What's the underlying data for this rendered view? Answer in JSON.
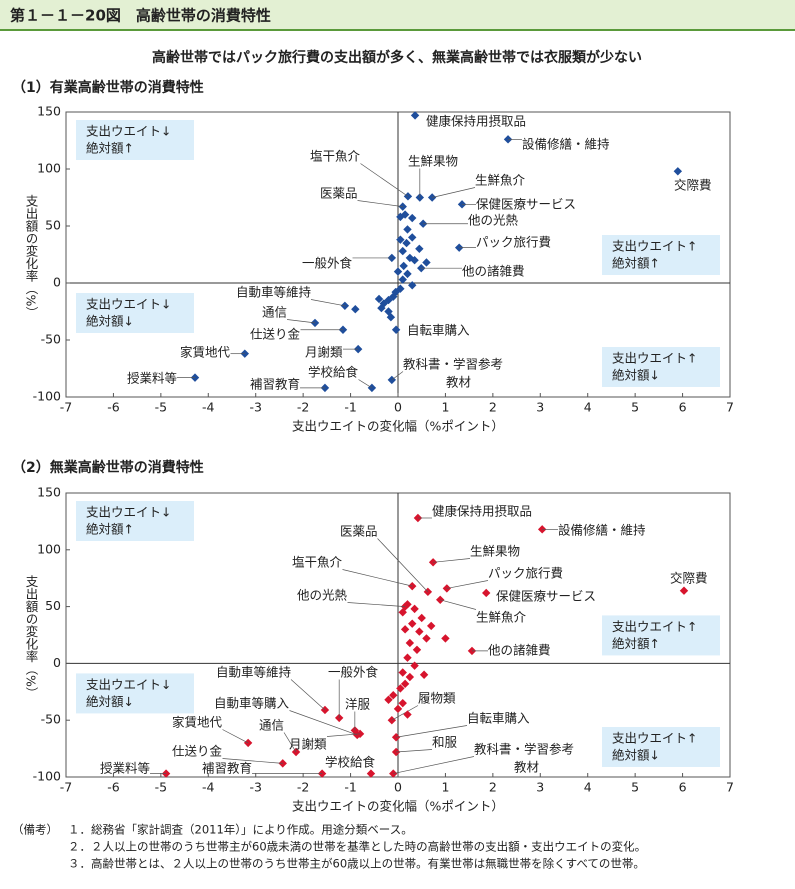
{
  "header": {
    "title": "第１－１－20図　高齢世帯の消費特性",
    "subtitle": "高齢世帯ではパック旅行費の支出額が多く、無業高齢世帯では衣服類が少ない"
  },
  "chart_data": [
    {
      "type": "scatter",
      "title": "（1）有業高齢世帯の消費特性",
      "xlabel": "支出ウエイトの変化幅（%ポイント）",
      "ylabel": "支出額の変化率（%）",
      "xlim": [
        -7,
        7
      ],
      "ylim": [
        -100,
        150
      ],
      "xticks": [
        -7,
        -6,
        -5,
        -4,
        -3,
        -2,
        -1,
        0,
        1,
        2,
        3,
        4,
        5,
        6,
        7
      ],
      "yticks": [
        -100,
        -50,
        0,
        50,
        100,
        150
      ],
      "quadrant_notes": [
        {
          "corner": "top-left",
          "lines": [
            "支出ウエイト↓",
            "絶対額↑"
          ]
        },
        {
          "corner": "bottom-left",
          "lines": [
            "支出ウエイト↓",
            "絶対額↓"
          ]
        },
        {
          "corner": "top-right",
          "lines": [
            "支出ウエイト↑",
            "絶対額↑"
          ]
        },
        {
          "corner": "bottom-right",
          "lines": [
            "支出ウエイト↑",
            "絶対額↓"
          ]
        }
      ],
      "series": [
        {
          "color": "#1f4e9c",
          "x": [
            0.36,
            2.32,
            5.9,
            0.21,
            0.46,
            0.72,
            0.1,
            1.35,
            0.53,
            1.29,
            0.49,
            -0.13,
            -1.12,
            -1.75,
            -1.16,
            -0.84,
            -3.23,
            -4.28,
            -1.54,
            -0.55,
            -0.04,
            -0.13,
            0.05,
            0.15,
            0.3,
            0.2,
            0.05,
            0.18,
            0.3,
            0.1,
            0.25,
            0.35,
            0.12,
            0.0,
            0.2,
            0.1,
            0.3,
            0.05,
            -0.05,
            -0.1,
            -0.2,
            -0.3,
            -0.35,
            -0.2,
            -0.4,
            -0.15,
            0.45,
            0.6,
            -0.9
          ],
          "y": [
            147,
            126,
            98,
            76,
            75,
            75,
            67,
            69,
            52,
            31,
            13,
            22,
            -20,
            -35,
            -41,
            -58,
            -62,
            -83,
            -92,
            -92,
            -41,
            -85,
            58,
            60,
            57,
            47,
            38,
            35,
            40,
            28,
            22,
            20,
            15,
            10,
            8,
            3,
            -2,
            -5,
            -8,
            -12,
            -15,
            -18,
            -22,
            -25,
            -14,
            -30,
            30,
            18,
            -23
          ],
          "labels": [
            "健康保持用摂取品",
            "設備修繕・維持",
            "交際費",
            "塩干魚介",
            "生鮮果物",
            "生鮮魚介",
            "医薬品",
            "保健医療サービス",
            "他の光熱",
            "パック旅行費",
            "他の諸雑費",
            "一般外食",
            "自動車等維持",
            "通信",
            "仕送り金",
            "月謝類",
            "家賃地代",
            "授業料等",
            "補習教育",
            "学校給食",
            "自転車購入",
            [
              "教科書・学習参考",
              "教材"
            ],
            null,
            null,
            null,
            null,
            null,
            null,
            null,
            null,
            null,
            null,
            null,
            null,
            null,
            null,
            null,
            null,
            null,
            null,
            null,
            null,
            null,
            null,
            null,
            null,
            null,
            null,
            null
          ]
        }
      ]
    },
    {
      "type": "scatter",
      "title": "（2）無業高齢世帯の消費特性",
      "xlabel": "支出ウエイトの変化幅（%ポイント）",
      "ylabel": "支出額の変化率（%）",
      "xlim": [
        -7,
        7
      ],
      "ylim": [
        -100,
        150
      ],
      "xticks": [
        -7,
        -6,
        -5,
        -4,
        -3,
        -2,
        -1,
        0,
        1,
        2,
        3,
        4,
        5,
        6,
        7
      ],
      "yticks": [
        -100,
        -50,
        0,
        50,
        100,
        150
      ],
      "quadrant_notes": [
        {
          "corner": "top-left",
          "lines": [
            "支出ウエイト↓",
            "絶対額↑"
          ]
        },
        {
          "corner": "bottom-left",
          "lines": [
            "支出ウエイト↓",
            "絶対額↓"
          ]
        },
        {
          "corner": "top-right",
          "lines": [
            "支出ウエイト↑",
            "絶対額↑"
          ]
        },
        {
          "corner": "bottom-right",
          "lines": [
            "支出ウエイト↑",
            "絶対額↓"
          ]
        }
      ],
      "series": [
        {
          "color": "#d7142d",
          "x": [
            0.42,
            3.04,
            6.03,
            0.74,
            1.03,
            1.86,
            0.3,
            0.63,
            0.15,
            0.89,
            1.56,
            -1.54,
            -1.24,
            -0.91,
            -0.13,
            -0.86,
            -3.16,
            -2.15,
            -0.8,
            -0.04,
            -0.04,
            -2.43,
            -1.6,
            -4.89,
            -0.57,
            -0.1,
            0.1,
            0.2,
            0.35,
            0.5,
            0.3,
            0.15,
            0.45,
            0.6,
            0.25,
            0.4,
            0.2,
            0.35,
            0.1,
            0.25,
            0.15,
            0.05,
            -0.1,
            0.1,
            -0.2,
            0.0,
            0.2,
            1.0,
            0.7,
            0.55
          ],
          "y": [
            128,
            118,
            64,
            89,
            66,
            62,
            68,
            63,
            50,
            56,
            11,
            -41,
            -48,
            -59,
            -50,
            -63,
            -70,
            -78,
            -62,
            -65,
            -78,
            -88,
            -97,
            -97,
            -97,
            -97,
            45,
            52,
            48,
            40,
            35,
            30,
            28,
            22,
            18,
            12,
            5,
            -2,
            -8,
            -12,
            -18,
            -22,
            -28,
            -35,
            -32,
            -40,
            -45,
            22,
            33,
            -10
          ],
          "labels": [
            "健康保持用摂取品",
            "設備修繕・維持",
            "交際費",
            "生鮮果物",
            "パック旅行費",
            "保健医療サービス",
            "塩干魚介",
            "医薬品",
            "他の光熱",
            "生鮮魚介",
            "他の諸雑費",
            "自動車等維持",
            "一般外食",
            "洋服",
            "履物類",
            "自動車等購入",
            "家賃地代",
            "通信",
            "月謝類",
            "自転車購入",
            "和服",
            "仕送り金",
            "補習教育",
            "授業料等",
            "学校給食",
            [
              "教科書・学習参考",
              "教材"
            ],
            null,
            null,
            null,
            null,
            null,
            null,
            null,
            null,
            null,
            null,
            null,
            null,
            null,
            null,
            null,
            null,
            null,
            null,
            null,
            null,
            null,
            null,
            null,
            null
          ]
        }
      ]
    }
  ],
  "notes": {
    "label": "（備考）",
    "items": [
      "１．総務省「家計調査（2011年）」により作成。用途分類ベース。",
      "２．２人以上の世帯のうち世帯主が60歳未満の世帯を基準とした時の高齢世帯の支出額・支出ウエイトの変化。",
      "３．高齢世帯とは、２人以上の世帯のうち世帯主が60歳以上の世帯。有業世帯は無職世帯を除くすべての世帯。"
    ]
  }
}
